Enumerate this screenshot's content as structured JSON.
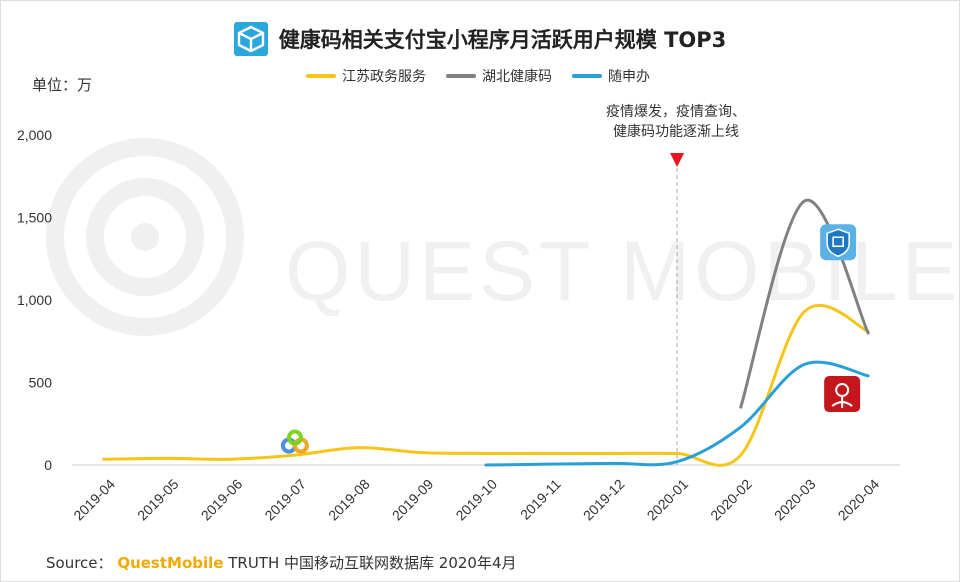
{
  "title": "健康码相关支付宝小程序月活跃用户规模 TOP3",
  "unit": "单位：万",
  "source": {
    "prefix": "Source：",
    "brand": "QuestMobile",
    "rest": "TRUTH 中国移动互联网数据库 2020年4月"
  },
  "watermark": "QUEST MOBILE",
  "annotation": {
    "line1": "疫情爆发，疫情查询、",
    "line2": "健康码功能逐渐上线",
    "at": "2020-01"
  },
  "colors": {
    "jiangsu": "#f5c518",
    "hubei": "#808080",
    "suishen": "#2a9fd6",
    "marker": "#e8131c",
    "axis": "#cccccc"
  },
  "chart_data": {
    "type": "line",
    "categories": [
      "2019-04",
      "2019-05",
      "2019-06",
      "2019-07",
      "2019-08",
      "2019-09",
      "2019-10",
      "2019-11",
      "2019-12",
      "2020-01",
      "2020-02",
      "2020-03",
      "2020-04"
    ],
    "ylim": [
      0,
      2000
    ],
    "yticks": [
      "2,000",
      "1,500",
      "1,000",
      "500",
      "0"
    ],
    "ytick_values": [
      2000,
      1500,
      1000,
      500,
      0
    ],
    "series": [
      {
        "name": "江苏政务服务",
        "values": [
          35,
          40,
          35,
          60,
          105,
          75,
          70,
          70,
          70,
          70,
          60,
          930,
          810
        ]
      },
      {
        "name": "湖北健康码",
        "values": [
          null,
          null,
          null,
          null,
          null,
          null,
          null,
          null,
          null,
          null,
          350,
          1600,
          800
        ]
      },
      {
        "name": "随申办",
        "values": [
          null,
          null,
          null,
          null,
          null,
          null,
          0,
          5,
          10,
          20,
          230,
          610,
          540
        ]
      }
    ]
  }
}
